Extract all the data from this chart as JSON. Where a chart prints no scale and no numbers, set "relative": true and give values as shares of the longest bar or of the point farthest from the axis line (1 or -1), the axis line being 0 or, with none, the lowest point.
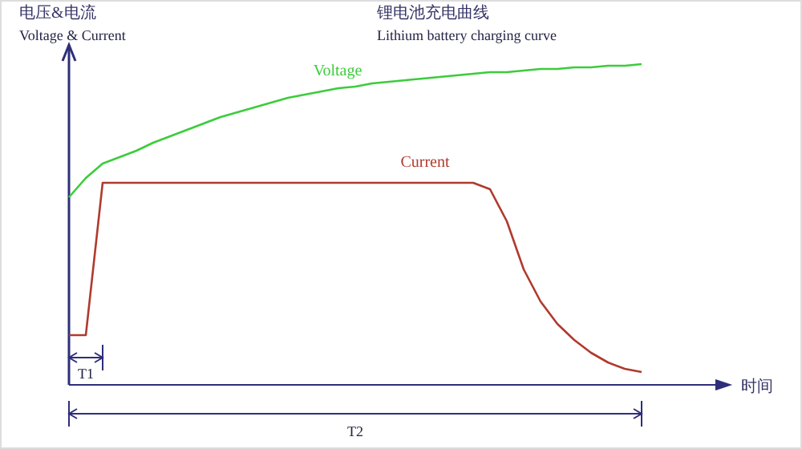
{
  "chart_data": {
    "type": "line",
    "title": "锂电池充电曲线",
    "subtitle": "Lithium battery charging curve",
    "ylabel": "电压&电流\nVoltage & Current",
    "relative": true,
    "marker": "none",
    "line_style": "solid",
    "annotations": [
      "T1",
      "T2",
      "时间"
    ],
    "categories": [
      null,
      null,
      null,
      null,
      null,
      null,
      null,
      null,
      null,
      null,
      null,
      null,
      null,
      null,
      null,
      null,
      null,
      null,
      null,
      null,
      null,
      null,
      null,
      null,
      null,
      null,
      null,
      null,
      null,
      null,
      null,
      null,
      null,
      null,
      null
    ],
    "series": [
      {
        "name": "Voltage",
        "color": "#3ccc3c",
        "values": [
          0.585,
          0.645,
          0.69,
          0.71,
          0.73,
          0.755,
          0.775,
          0.795,
          0.815,
          0.835,
          0.85,
          0.865,
          0.88,
          0.895,
          0.905,
          0.915,
          0.925,
          0.93,
          0.94,
          0.945,
          0.95,
          0.955,
          0.96,
          0.965,
          0.97,
          0.975,
          0.975,
          0.98,
          0.985,
          0.985,
          0.99,
          0.99,
          0.995,
          0.995,
          1
        ]
      },
      {
        "name": "Current",
        "color": "#b03a2e",
        "values": [
          0.155,
          0.155,
          0.63,
          0.63,
          0.63,
          0.63,
          0.63,
          0.63,
          0.63,
          0.63,
          0.63,
          0.63,
          0.63,
          0.63,
          0.63,
          0.63,
          0.63,
          0.63,
          0.63,
          0.63,
          0.63,
          0.63,
          0.63,
          0.63,
          0.63,
          0.61,
          0.51,
          0.36,
          0.26,
          0.19,
          0.14,
          0.1,
          0.07,
          0.05,
          0.04
        ]
      }
    ]
  }
}
